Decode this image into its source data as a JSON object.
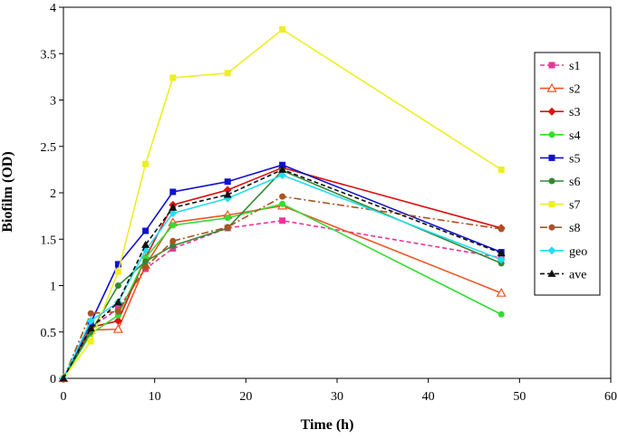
{
  "chart_data": {
    "type": "line",
    "title": "",
    "xlabel": "Time (h)",
    "ylabel": "Biofilm (OD)",
    "xlim": [
      0,
      60
    ],
    "ylim": [
      0,
      4
    ],
    "xticks": [
      0,
      10,
      20,
      30,
      40,
      50,
      60
    ],
    "yticks": [
      0,
      0.5,
      1,
      1.5,
      2,
      2.5,
      3,
      3.5,
      4
    ],
    "grid": false,
    "legend_position": "right",
    "x": [
      0,
      3,
      6,
      9,
      12,
      18,
      24,
      48
    ],
    "series": [
      {
        "name": "s1",
        "color": "#ee3399",
        "dash": "dashed",
        "marker": "square",
        "values": [
          0,
          0.55,
          0.75,
          1.18,
          1.4,
          1.62,
          1.7,
          1.3
        ]
      },
      {
        "name": "s2",
        "color": "#ee5522",
        "dash": "solid",
        "marker": "triangle-open",
        "values": [
          0,
          0.52,
          0.53,
          1.22,
          1.68,
          1.76,
          1.86,
          0.92
        ]
      },
      {
        "name": "s3",
        "color": "#dd1111",
        "dash": "solid",
        "marker": "diamond",
        "values": [
          0,
          0.55,
          0.62,
          1.3,
          1.87,
          2.03,
          2.27,
          1.62
        ]
      },
      {
        "name": "s4",
        "color": "#33dd33",
        "dash": "solid",
        "marker": "circle",
        "values": [
          0,
          0.48,
          0.68,
          1.3,
          1.65,
          1.73,
          1.88,
          0.69
        ]
      },
      {
        "name": "s5",
        "color": "#1111cc",
        "dash": "solid",
        "marker": "square",
        "values": [
          0,
          0.6,
          1.23,
          1.59,
          2.01,
          2.12,
          2.3,
          1.36
        ]
      },
      {
        "name": "s6",
        "color": "#338833",
        "dash": "solid",
        "marker": "circle",
        "values": [
          0,
          0.5,
          1.0,
          1.26,
          1.43,
          1.62,
          2.24,
          1.24
        ]
      },
      {
        "name": "s7",
        "color": "#eeee22",
        "dash": "solid",
        "marker": "square",
        "values": [
          0,
          0.4,
          1.15,
          2.31,
          3.24,
          3.29,
          3.76,
          2.25
        ]
      },
      {
        "name": "s8",
        "color": "#aa5522",
        "dash": "dashdot",
        "marker": "circle",
        "values": [
          0,
          0.7,
          0.72,
          1.2,
          1.48,
          1.63,
          1.96,
          1.61
        ]
      },
      {
        "name": "geo",
        "color": "#22ddee",
        "dash": "solid",
        "marker": "diamond",
        "values": [
          0,
          0.62,
          0.82,
          1.38,
          1.78,
          1.94,
          2.19,
          1.28
        ]
      },
      {
        "name": "ave",
        "color": "#111111",
        "dash": "dashed",
        "marker": "triangle",
        "values": [
          0,
          0.54,
          0.82,
          1.44,
          1.84,
          1.98,
          2.25,
          1.35
        ]
      }
    ]
  }
}
